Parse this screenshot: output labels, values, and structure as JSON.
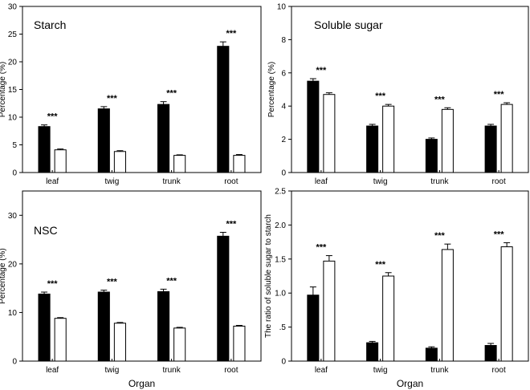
{
  "chart_data": [
    {
      "type": "bar",
      "title": "Starch",
      "xlabel": "",
      "ylabel": "Percentage (%)",
      "categories": [
        "leaf",
        "twig",
        "trunk",
        "root"
      ],
      "ylim": [
        0,
        30
      ],
      "yticks": [
        0,
        5,
        10,
        15,
        20,
        25,
        30
      ],
      "ytick_labels": [
        "0",
        "5",
        "10",
        "15",
        "20",
        "25",
        "30"
      ],
      "series": [
        {
          "name": "filled",
          "color": "#000000",
          "values": [
            8.3,
            11.5,
            12.3,
            22.8
          ],
          "errors": [
            0.3,
            0.4,
            0.5,
            0.8
          ]
        },
        {
          "name": "open",
          "color": "#ffffff",
          "values": [
            4.1,
            3.8,
            3.1,
            3.1
          ],
          "errors": [
            0.15,
            0.15,
            0.1,
            0.15
          ]
        }
      ],
      "annotations": [
        "***",
        "***",
        "***",
        "***"
      ]
    },
    {
      "type": "bar",
      "title": "Soluble sugar",
      "xlabel": "",
      "ylabel": "Percentage (%)",
      "categories": [
        "leaf",
        "twig",
        "trunk",
        "root"
      ],
      "ylim": [
        0,
        10
      ],
      "yticks": [
        0,
        2,
        4,
        6,
        8,
        10
      ],
      "ytick_labels": [
        "0",
        "2",
        "4",
        "6",
        "8",
        "10"
      ],
      "series": [
        {
          "name": "filled",
          "color": "#000000",
          "values": [
            5.5,
            2.8,
            2.0,
            2.8
          ],
          "errors": [
            0.15,
            0.1,
            0.08,
            0.1
          ]
        },
        {
          "name": "open",
          "color": "#ffffff",
          "values": [
            4.7,
            4.0,
            3.8,
            4.1
          ],
          "errors": [
            0.1,
            0.1,
            0.1,
            0.1
          ]
        }
      ],
      "annotations": [
        "***",
        "***",
        "***",
        "***"
      ]
    },
    {
      "type": "bar",
      "title": "NSC",
      "xlabel": "Organ",
      "ylabel": "Percentage (%)",
      "categories": [
        "leaf",
        "twig",
        "trunk",
        "root"
      ],
      "ylim": [
        0,
        35
      ],
      "yticks": [
        0,
        10,
        20,
        30
      ],
      "ytick_labels": [
        "0",
        "10",
        "20",
        "30"
      ],
      "series": [
        {
          "name": "filled",
          "color": "#000000",
          "values": [
            13.8,
            14.2,
            14.3,
            25.7
          ],
          "errors": [
            0.4,
            0.4,
            0.5,
            0.8
          ]
        },
        {
          "name": "open",
          "color": "#ffffff",
          "values": [
            8.8,
            7.8,
            6.8,
            7.2
          ],
          "errors": [
            0.15,
            0.15,
            0.15,
            0.15
          ]
        }
      ],
      "annotations": [
        "***",
        "***",
        "***",
        "***"
      ]
    },
    {
      "type": "bar",
      "title": "",
      "xlabel": "Organ",
      "ylabel": "The ratio of soluble sugar to starch",
      "categories": [
        "leaf",
        "twig",
        "trunk",
        "root"
      ],
      "ylim": [
        0,
        2.5
      ],
      "yticks": [
        0,
        0.5,
        1.0,
        1.5,
        2.0,
        2.5
      ],
      "ytick_labels": [
        "0",
        ".5",
        "1.0",
        "1.5",
        "2.0",
        "2.5"
      ],
      "series": [
        {
          "name": "filled",
          "color": "#000000",
          "values": [
            0.97,
            0.27,
            0.19,
            0.23
          ],
          "errors": [
            0.12,
            0.02,
            0.02,
            0.03
          ]
        },
        {
          "name": "open",
          "color": "#ffffff",
          "values": [
            1.47,
            1.25,
            1.64,
            1.68
          ],
          "errors": [
            0.08,
            0.05,
            0.08,
            0.06
          ]
        }
      ],
      "annotations": [
        "***",
        "***",
        "***",
        "***"
      ]
    }
  ]
}
